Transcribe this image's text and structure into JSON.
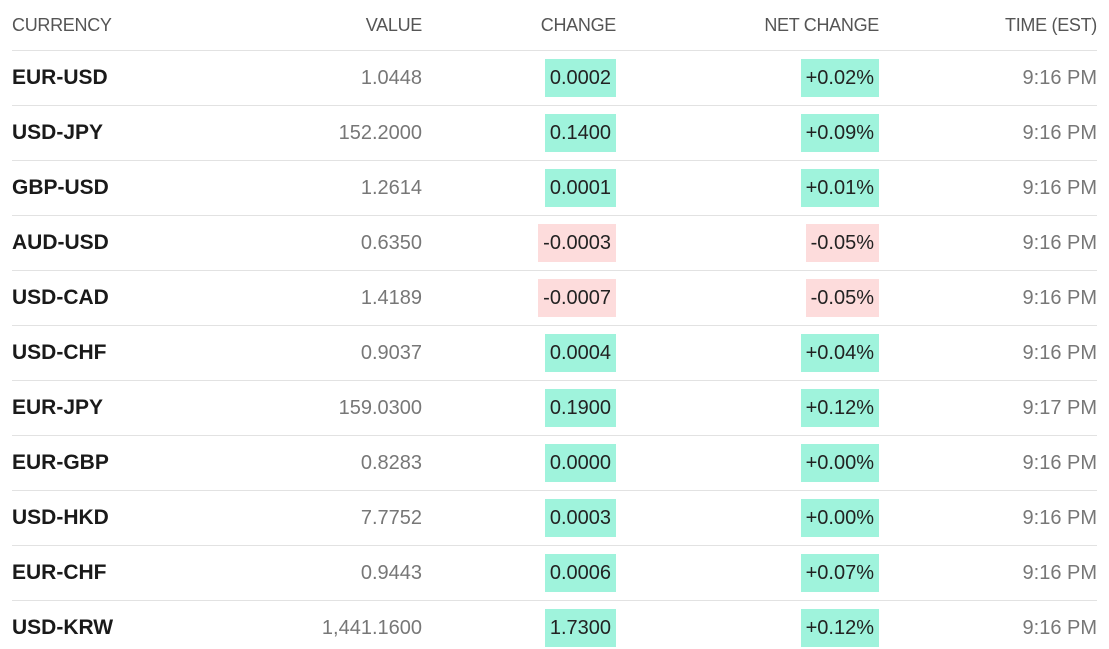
{
  "table": {
    "header": [
      "CURRENCY",
      "VALUE",
      "CHANGE",
      "NET CHANGE",
      "TIME (EST)"
    ],
    "rows": [
      [
        "EUR-USD",
        "1.0448",
        "0.0002",
        "+0.02%",
        "9:16 PM"
      ],
      [
        "USD-JPY",
        "152.2000",
        "0.1400",
        "+0.09%",
        "9:16 PM"
      ],
      [
        "GBP-USD",
        "1.2614",
        "0.0001",
        "+0.01%",
        "9:16 PM"
      ],
      [
        "AUD-USD",
        "0.6350",
        "-0.0003",
        "-0.05%",
        "9:16 PM"
      ],
      [
        "USD-CAD",
        "1.4189",
        "-0.0007",
        "-0.05%",
        "9:16 PM"
      ],
      [
        "USD-CHF",
        "0.9037",
        "0.0004",
        "+0.04%",
        "9:16 PM"
      ],
      [
        "EUR-JPY",
        "159.0300",
        "0.1900",
        "+0.12%",
        "9:17 PM"
      ],
      [
        "EUR-GBP",
        "0.8283",
        "0.0000",
        "+0.00%",
        "9:16 PM"
      ],
      [
        "USD-HKD",
        "7.7752",
        "0.0003",
        "+0.00%",
        "9:16 PM"
      ],
      [
        "EUR-CHF",
        "0.9443",
        "0.0006",
        "+0.07%",
        "9:16 PM"
      ],
      [
        "USD-KRW",
        "1,441.1600",
        "1.7300",
        "+0.12%",
        "9:16 PM"
      ]
    ]
  }
}
